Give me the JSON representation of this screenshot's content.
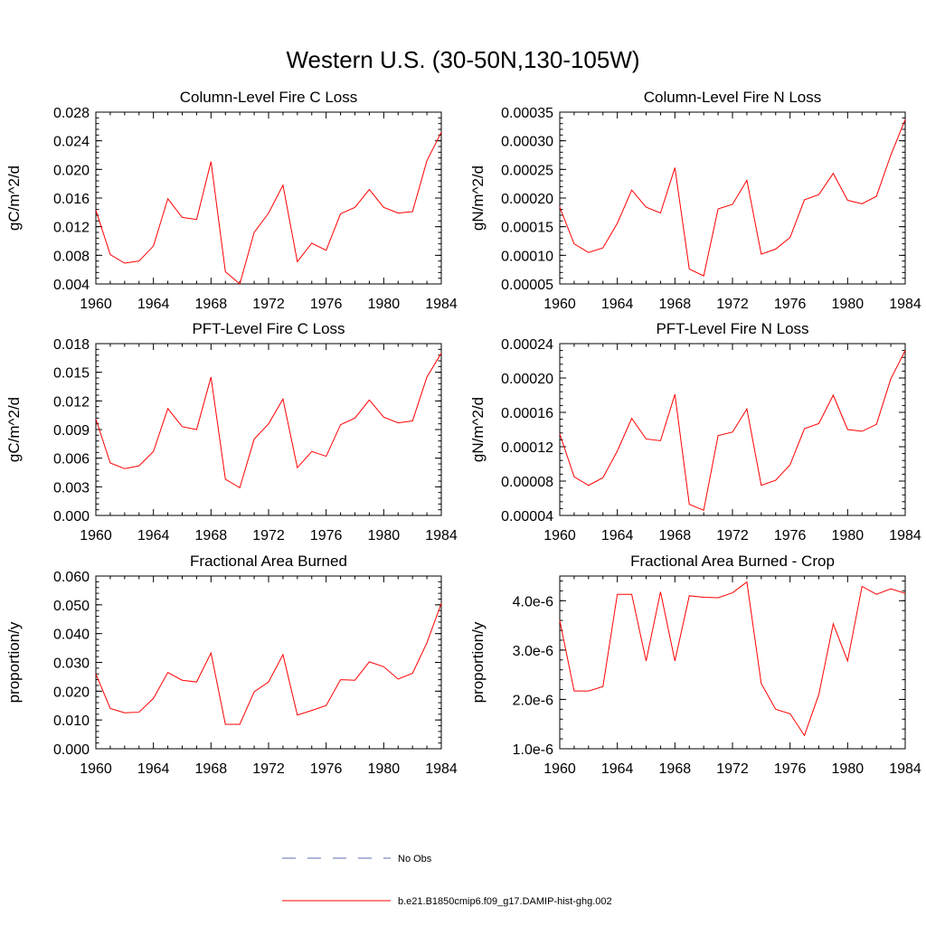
{
  "page": {
    "title": "Western U.S. (30-50N,130-105W)"
  },
  "legend": {
    "obs_label": "No Obs",
    "obs_color": "#5a6fb0",
    "model_label": "b.e21.B1850cmip6.f09_g17.DAMIP-hist-ghg.002",
    "model_color": "#ff0000"
  },
  "chart_data": [
    {
      "type": "line",
      "title": "Column-Level Fire C Loss",
      "ylabel": "gC/m^2/d",
      "xlim": [
        1960,
        1984
      ],
      "ylim": [
        0.004,
        0.028
      ],
      "xticks": [
        "1960",
        "1964",
        "1968",
        "1972",
        "1976",
        "1980",
        "1984"
      ],
      "yticks": [
        "0.004",
        "0.008",
        "0.012",
        "0.016",
        "0.020",
        "0.024",
        "0.028"
      ],
      "x": [
        1960,
        1961,
        1962,
        1963,
        1964,
        1965,
        1966,
        1967,
        1968,
        1969,
        1970,
        1971,
        1972,
        1973,
        1974,
        1975,
        1976,
        1977,
        1978,
        1979,
        1980,
        1981,
        1982,
        1983,
        1984
      ],
      "series": [
        {
          "values": [
            0.0143,
            0.0081,
            0.0069,
            0.0072,
            0.0093,
            0.0159,
            0.0133,
            0.013,
            0.0211,
            0.0057,
            0.004,
            0.0112,
            0.0139,
            0.0178,
            0.0071,
            0.0097,
            0.0087,
            0.0138,
            0.0147,
            0.0172,
            0.0147,
            0.0139,
            0.0141,
            0.0212,
            0.0252
          ],
          "color": "#ff0000"
        }
      ]
    },
    {
      "type": "line",
      "title": "Column-Level Fire N Loss",
      "ylabel": "gN/m^2/d",
      "xlim": [
        1960,
        1984
      ],
      "ylim": [
        5e-05,
        0.00035
      ],
      "xticks": [
        "1960",
        "1964",
        "1968",
        "1972",
        "1976",
        "1980",
        "1984"
      ],
      "yticks": [
        "0.00005",
        "0.00010",
        "0.00015",
        "0.00020",
        "0.00025",
        "0.00030",
        "0.00035"
      ],
      "x": [
        1960,
        1961,
        1962,
        1963,
        1964,
        1965,
        1966,
        1967,
        1968,
        1969,
        1970,
        1971,
        1972,
        1973,
        1974,
        1975,
        1976,
        1977,
        1978,
        1979,
        1980,
        1981,
        1982,
        1983,
        1984
      ],
      "series": [
        {
          "values": [
            0.000184,
            0.00012,
            0.000105,
            0.000113,
            0.000156,
            0.000214,
            0.000184,
            0.000174,
            0.000253,
            7.6e-05,
            6.4e-05,
            0.000181,
            0.000189,
            0.000231,
            0.000102,
            0.000111,
            0.000131,
            0.000197,
            0.000206,
            0.000243,
            0.000196,
            0.00019,
            0.000203,
            0.000275,
            0.000337
          ],
          "color": "#ff0000"
        }
      ]
    },
    {
      "type": "line",
      "title": "PFT-Level Fire C Loss",
      "ylabel": "gC/m^2/d",
      "xlim": [
        1960,
        1984
      ],
      "ylim": [
        0.0,
        0.018
      ],
      "xticks": [
        "1960",
        "1964",
        "1968",
        "1972",
        "1976",
        "1980",
        "1984"
      ],
      "yticks": [
        "0.000",
        "0.003",
        "0.006",
        "0.009",
        "0.012",
        "0.015",
        "0.018"
      ],
      "x": [
        1960,
        1961,
        1962,
        1963,
        1964,
        1965,
        1966,
        1967,
        1968,
        1969,
        1970,
        1971,
        1972,
        1973,
        1974,
        1975,
        1976,
        1977,
        1978,
        1979,
        1980,
        1981,
        1982,
        1983,
        1984
      ],
      "series": [
        {
          "values": [
            0.0101,
            0.0055,
            0.0049,
            0.0052,
            0.0067,
            0.0112,
            0.0093,
            0.009,
            0.0145,
            0.0038,
            0.0029,
            0.008,
            0.0096,
            0.0122,
            0.005,
            0.0067,
            0.0062,
            0.0095,
            0.0102,
            0.0121,
            0.0103,
            0.0097,
            0.0099,
            0.0145,
            0.017
          ],
          "color": "#ff0000"
        }
      ]
    },
    {
      "type": "line",
      "title": "PFT-Level Fire N Loss",
      "ylabel": "gN/m^2/d",
      "xlim": [
        1960,
        1984
      ],
      "ylim": [
        4e-05,
        0.00024
      ],
      "xticks": [
        "1960",
        "1964",
        "1968",
        "1972",
        "1976",
        "1980",
        "1984"
      ],
      "yticks": [
        "0.00004",
        "0.00008",
        "0.00012",
        "0.00016",
        "0.00020",
        "0.00024"
      ],
      "x": [
        1960,
        1961,
        1962,
        1963,
        1964,
        1965,
        1966,
        1967,
        1968,
        1969,
        1970,
        1971,
        1972,
        1973,
        1974,
        1975,
        1976,
        1977,
        1978,
        1979,
        1980,
        1981,
        1982,
        1983,
        1984
      ],
      "series": [
        {
          "values": [
            0.000135,
            8.5e-05,
            7.5e-05,
            8.4e-05,
            0.000115,
            0.000153,
            0.000129,
            0.000127,
            0.000181,
            5.3e-05,
            4.6e-05,
            0.000133,
            0.000137,
            0.000164,
            7.5e-05,
            8.1e-05,
            9.9e-05,
            0.000141,
            0.000147,
            0.00018,
            0.00014,
            0.000138,
            0.000146,
            0.000199,
            0.000232
          ],
          "color": "#ff0000"
        }
      ]
    },
    {
      "type": "line",
      "title": "Fractional Area Burned",
      "ylabel": "proportion/y",
      "xlim": [
        1960,
        1984
      ],
      "ylim": [
        0.0,
        0.06
      ],
      "xticks": [
        "1960",
        "1964",
        "1968",
        "1972",
        "1976",
        "1980",
        "1984"
      ],
      "yticks": [
        "0.000",
        "0.010",
        "0.020",
        "0.030",
        "0.040",
        "0.050",
        "0.060"
      ],
      "x": [
        1960,
        1961,
        1962,
        1963,
        1964,
        1965,
        1966,
        1967,
        1968,
        1969,
        1970,
        1971,
        1972,
        1973,
        1974,
        1975,
        1976,
        1977,
        1978,
        1979,
        1980,
        1981,
        1982,
        1983,
        1984
      ],
      "series": [
        {
          "values": [
            0.026,
            0.014,
            0.0125,
            0.0127,
            0.0175,
            0.0265,
            0.0238,
            0.0232,
            0.0333,
            0.0085,
            0.0085,
            0.0198,
            0.0232,
            0.0327,
            0.0117,
            0.0133,
            0.015,
            0.024,
            0.0238,
            0.0302,
            0.0285,
            0.0242,
            0.0262,
            0.0368,
            0.0505
          ],
          "color": "#ff0000"
        }
      ]
    },
    {
      "type": "line",
      "title": "Fractional Area Burned - Crop",
      "ylabel": "proportion/y",
      "xlim": [
        1960,
        1984
      ],
      "ylim": [
        1e-06,
        4.5e-06
      ],
      "xticks": [
        "1960",
        "1964",
        "1968",
        "1972",
        "1976",
        "1980",
        "1984"
      ],
      "yticks": [
        "1.0e-6",
        "2.0e-6",
        "3.0e-6",
        "4.0e-6"
      ],
      "ytick_values": [
        1e-06,
        2e-06,
        3e-06,
        4e-06
      ],
      "x": [
        1960,
        1961,
        1962,
        1963,
        1964,
        1965,
        1966,
        1967,
        1968,
        1969,
        1970,
        1971,
        1972,
        1973,
        1974,
        1975,
        1976,
        1977,
        1978,
        1979,
        1980,
        1981,
        1982,
        1983,
        1984
      ],
      "series": [
        {
          "values": [
            3.6e-06,
            2.17e-06,
            2.17e-06,
            2.26e-06,
            4.13e-06,
            4.13e-06,
            2.78e-06,
            4.18e-06,
            2.78e-06,
            4.1e-06,
            4.07e-06,
            4.06e-06,
            4.16e-06,
            4.38e-06,
            2.32e-06,
            1.8e-06,
            1.71e-06,
            1.27e-06,
            2.1e-06,
            3.53e-06,
            2.78e-06,
            4.29e-06,
            4.13e-06,
            4.24e-06,
            4.15e-06
          ],
          "color": "#ff0000"
        }
      ]
    }
  ]
}
